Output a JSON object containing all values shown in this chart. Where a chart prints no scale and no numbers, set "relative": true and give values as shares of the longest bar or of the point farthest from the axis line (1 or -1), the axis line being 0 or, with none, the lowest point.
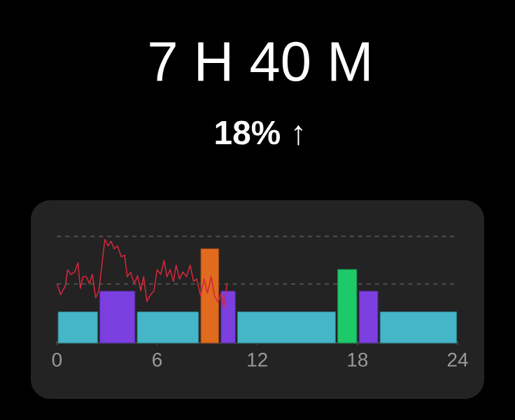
{
  "chart_data": {
    "type": "bar",
    "title": "7 H 40 M",
    "subtitle": "18% ↑",
    "relative": true,
    "xlim": [
      0,
      24
    ],
    "xticks": [
      0,
      6,
      12,
      18,
      24
    ],
    "ref_lines": [
      {
        "axis": "y",
        "value": 1.03,
        "color": "#555555",
        "line_style": "dashed"
      },
      {
        "axis": "y",
        "value": 0.57,
        "color": "#555555",
        "line_style": "dashed"
      }
    ],
    "series": [
      {
        "x": [
          1.25,
          3.62,
          6.645,
          9.155,
          10.255,
          13.75,
          17.39,
          18.66,
          21.65
        ],
        "values": [
          0.3,
          0.5,
          0.3,
          0.91,
          0.5,
          0.3,
          0.71,
          0.5,
          0.3
        ],
        "colors": [
          "#45b5c8",
          "#7b3fe0",
          "#45b5c8",
          "#e06a1e",
          "#7b3fe0",
          "#45b5c8",
          "#1ec96a",
          "#7b3fe0",
          "#45b5c8"
        ]
      },
      {
        "type": "line",
        "color": "#d0283c",
        "x": [
          0,
          0.22,
          0.5,
          0.64,
          0.84,
          1.06,
          1.26,
          1.4,
          1.56,
          1.76,
          1.95,
          2.12,
          2.32,
          2.51,
          2.74,
          2.87,
          3.07,
          3.24,
          3.43,
          3.63,
          3.85,
          4.05,
          4.21,
          4.41,
          4.63,
          4.83,
          5.02,
          5.19,
          5.39,
          5.58,
          5.81,
          6.0,
          6.22,
          6.42,
          6.59,
          6.78,
          6.98,
          7.14,
          7.34,
          7.54,
          7.76,
          7.98,
          8.18,
          8.37,
          8.6,
          8.82,
          9.01,
          9.24,
          9.43,
          9.66,
          9.85,
          9.99,
          10.19
        ],
        "values": [
          0.572,
          0.468,
          0.55,
          0.707,
          0.662,
          0.685,
          0.775,
          0.527,
          0.64,
          0.64,
          0.572,
          0.662,
          0.437,
          0.505,
          0.82,
          1.0,
          0.937,
          0.982,
          0.91,
          0.937,
          0.833,
          0.847,
          0.64,
          0.685,
          0.572,
          0.649,
          0.505,
          0.64,
          0.401,
          0.459,
          0.505,
          0.707,
          0.662,
          0.797,
          0.64,
          0.707,
          0.595,
          0.752,
          0.617,
          0.685,
          0.64,
          0.752,
          0.595,
          0.617,
          0.459,
          0.617,
          0.482,
          0.64,
          0.459,
          0.392,
          0.482,
          0.338,
          0.572
        ]
      }
    ]
  }
}
